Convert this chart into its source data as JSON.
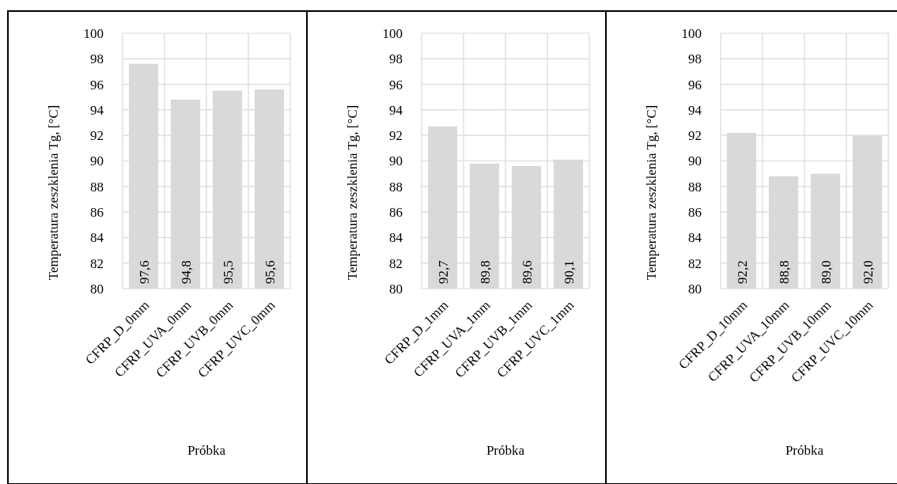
{
  "chart_data": [
    {
      "type": "bar",
      "xlabel": "Próbka",
      "ylabel": "Temperatura zeszklenia Tg, [°C]",
      "categories": [
        "CFRP_D_0mm",
        "CFRP_UVA_0mm",
        "CFRP_UVB_0mm",
        "CFRP_UVC_0mm"
      ],
      "values": [
        97.6,
        94.8,
        95.5,
        95.6
      ],
      "value_labels": [
        "97,6",
        "94,8",
        "95,5",
        "95,6"
      ],
      "color": "#d9d9d9",
      "ylim": [
        80,
        100
      ],
      "yticks": [
        80,
        82,
        84,
        86,
        88,
        90,
        92,
        94,
        96,
        98,
        100
      ],
      "grid": true
    },
    {
      "type": "bar",
      "xlabel": "Próbka",
      "ylabel": "Temperatura zeszklenia Tg, [°C]",
      "categories": [
        "CFRP_D_1mm",
        "CFRP_UVA_1mm",
        "CFRP_UVB_1mm",
        "CFRP_UVC_1mm"
      ],
      "values": [
        92.7,
        89.8,
        89.6,
        90.1
      ],
      "value_labels": [
        "92,7",
        "89,8",
        "89,6",
        "90,1"
      ],
      "color": "#d9d9d9",
      "ylim": [
        80,
        100
      ],
      "yticks": [
        80,
        82,
        84,
        86,
        88,
        90,
        92,
        94,
        96,
        98,
        100
      ],
      "grid": true
    },
    {
      "type": "bar",
      "xlabel": "Próbka",
      "ylabel": "Temperatura zeszklenia Tg, [°C]",
      "categories": [
        "CFRP_D_10mm",
        "CFRP_UVA_10mm",
        "CFRP_UVB_10mm",
        "CFRP_UVC_10mm"
      ],
      "values": [
        92.2,
        88.8,
        89.0,
        92.0
      ],
      "value_labels": [
        "92,2",
        "88,8",
        "89,0",
        "92,0"
      ],
      "color": "#d9d9d9",
      "ylim": [
        80,
        100
      ],
      "yticks": [
        80,
        82,
        84,
        86,
        88,
        90,
        92,
        94,
        96,
        98,
        100
      ],
      "grid": true
    }
  ]
}
